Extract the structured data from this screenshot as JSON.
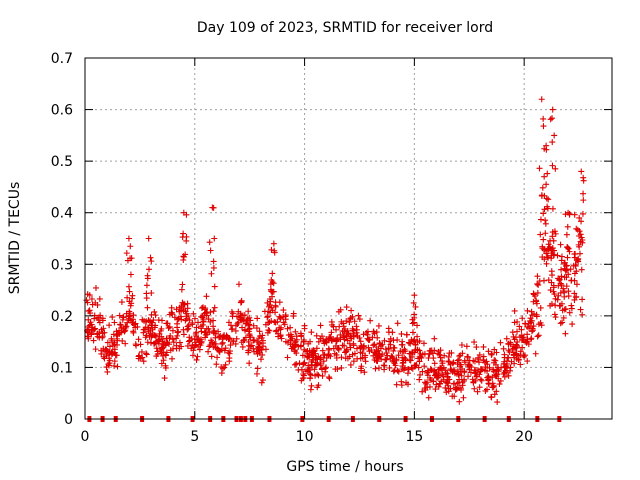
{
  "chart_data": {
    "type": "scatter",
    "title": "Day 109 of 2023, SRMTID for receiver lord",
    "xlabel": "GPS time / hours",
    "ylabel": "SRMTID / TECUs",
    "xlim": [
      0,
      24
    ],
    "ylim": [
      0,
      0.7
    ],
    "xticks": [
      "0",
      "5",
      "10",
      "15",
      "20"
    ],
    "yticks": [
      "0",
      "0.1",
      "0.2",
      "0.3",
      "0.4",
      "0.5",
      "0.6",
      "0.7"
    ],
    "grid": true,
    "series": [
      {
        "name": "SRMTID",
        "color": "#e00000",
        "marker": "plus",
        "trend": [
          [
            0.0,
            0.18
          ],
          [
            0.5,
            0.2
          ],
          [
            1.0,
            0.12
          ],
          [
            1.5,
            0.15
          ],
          [
            2.0,
            0.22
          ],
          [
            2.5,
            0.14
          ],
          [
            3.0,
            0.18
          ],
          [
            3.5,
            0.13
          ],
          [
            4.0,
            0.16
          ],
          [
            4.5,
            0.21
          ],
          [
            5.0,
            0.15
          ],
          [
            5.5,
            0.2
          ],
          [
            6.0,
            0.14
          ],
          [
            6.5,
            0.13
          ],
          [
            7.0,
            0.2
          ],
          [
            7.5,
            0.17
          ],
          [
            8.0,
            0.12
          ],
          [
            8.5,
            0.24
          ],
          [
            9.0,
            0.17
          ],
          [
            9.5,
            0.16
          ],
          [
            10.0,
            0.12
          ],
          [
            10.5,
            0.11
          ],
          [
            11.0,
            0.13
          ],
          [
            11.5,
            0.15
          ],
          [
            12.0,
            0.17
          ],
          [
            12.5,
            0.14
          ],
          [
            13.0,
            0.13
          ],
          [
            13.5,
            0.14
          ],
          [
            14.0,
            0.13
          ],
          [
            14.5,
            0.12
          ],
          [
            15.0,
            0.13
          ],
          [
            15.5,
            0.1
          ],
          [
            16.0,
            0.09
          ],
          [
            16.5,
            0.08
          ],
          [
            17.0,
            0.08
          ],
          [
            17.5,
            0.11
          ],
          [
            18.0,
            0.1
          ],
          [
            18.5,
            0.08
          ],
          [
            19.0,
            0.1
          ],
          [
            19.5,
            0.14
          ],
          [
            20.0,
            0.15
          ],
          [
            20.5,
            0.2
          ],
          [
            21.0,
            0.36
          ],
          [
            21.5,
            0.24
          ],
          [
            22.0,
            0.27
          ],
          [
            22.5,
            0.3
          ]
        ],
        "spikes": [
          [
            4.5,
            0.4
          ],
          [
            5.8,
            0.41
          ],
          [
            8.6,
            0.34
          ],
          [
            2.0,
            0.35
          ],
          [
            2.9,
            0.35
          ],
          [
            20.8,
            0.62
          ],
          [
            21.3,
            0.6
          ],
          [
            21.0,
            0.53
          ],
          [
            22.0,
            0.4
          ],
          [
            22.6,
            0.48
          ],
          [
            15.0,
            0.24
          ]
        ]
      }
    ],
    "gap_markers_x": [
      0.2,
      0.8,
      1.4,
      2.6,
      3.8,
      4.9,
      5.7,
      6.3,
      6.9,
      7.1,
      7.3,
      7.6,
      8.4,
      9.9,
      11.1,
      12.2,
      13.4,
      14.6,
      15.8,
      17.0,
      18.2,
      19.3,
      20.6,
      21.6
    ]
  }
}
